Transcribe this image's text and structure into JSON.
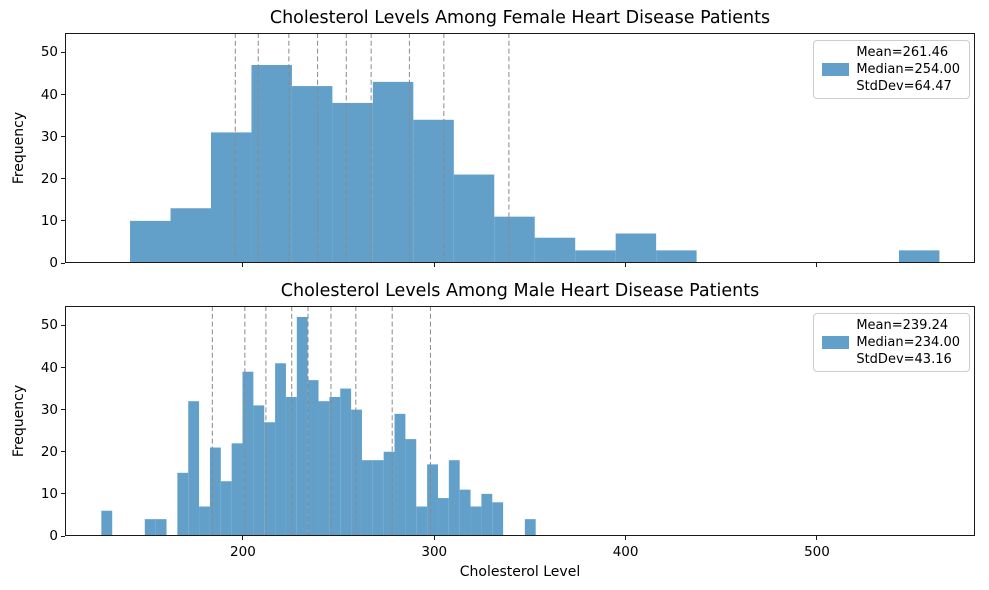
{
  "figure": {
    "background": "#ffffff"
  },
  "colors": {
    "bar": "#62a0ca",
    "decile_line": "#8a8a8a",
    "spine": "#1a1a1a",
    "text": "#000000",
    "legend_border": "#cccccc",
    "legend_bg": "#ffffff"
  },
  "x_axis": {
    "label": "Cholesterol Level",
    "ticks": [
      "200",
      "300",
      "400",
      "500"
    ],
    "tick_values": [
      200,
      300,
      400,
      500
    ],
    "min": 107,
    "max": 582.6,
    "grid": false
  },
  "y_axis": {
    "label": "Frequency",
    "ticks": [
      "0",
      "10",
      "20",
      "30",
      "40",
      "50"
    ],
    "tick_values": [
      0,
      10,
      20,
      30,
      40,
      50
    ],
    "min": 0,
    "max": 54.6,
    "grid": false
  },
  "chart_data": [
    {
      "type": "bar",
      "subtype": "histogram",
      "series_name": "female",
      "title": "Cholesterol Levels Among Female Heart Disease Patients",
      "bin_start": 141.0,
      "bin_width": 21.15,
      "counts": [
        10,
        13,
        31,
        47,
        42,
        38,
        43,
        34,
        21,
        11,
        6,
        3,
        7,
        3,
        0,
        0,
        0,
        0,
        0,
        3
      ],
      "decile_lines": [
        196,
        208,
        224,
        239,
        254,
        267,
        287,
        305,
        339
      ],
      "legend": {
        "lines": [
          "Mean=261.46",
          "Median=254.00",
          "StdDev=64.47"
        ],
        "position": "upper right"
      },
      "stats": {
        "mean": 261.46,
        "median": 254.0,
        "stddev": 64.47,
        "n": 312
      }
    },
    {
      "type": "bar",
      "subtype": "histogram",
      "series_name": "male",
      "title": "Cholesterol Levels Among Male Heart Disease Patients",
      "bin_start": 126.0,
      "bin_width": 5.675,
      "counts": [
        6,
        0,
        0,
        0,
        4,
        4,
        0,
        15,
        32,
        7,
        21,
        13,
        22,
        39,
        31,
        27,
        41,
        33,
        52,
        37,
        32,
        33,
        35,
        30,
        18,
        18,
        20,
        29,
        23,
        7,
        17,
        9,
        18,
        11,
        7,
        10,
        8,
        0,
        0,
        4
      ],
      "decile_lines": [
        184,
        201,
        212,
        225.5,
        234,
        246,
        259,
        278,
        298
      ],
      "legend": {
        "lines": [
          "Mean=239.24",
          "Median=234.00",
          "StdDev=43.16"
        ],
        "position": "upper right"
      },
      "stats": {
        "mean": 239.24,
        "median": 234.0,
        "stddev": 43.16,
        "n": 713
      }
    }
  ]
}
